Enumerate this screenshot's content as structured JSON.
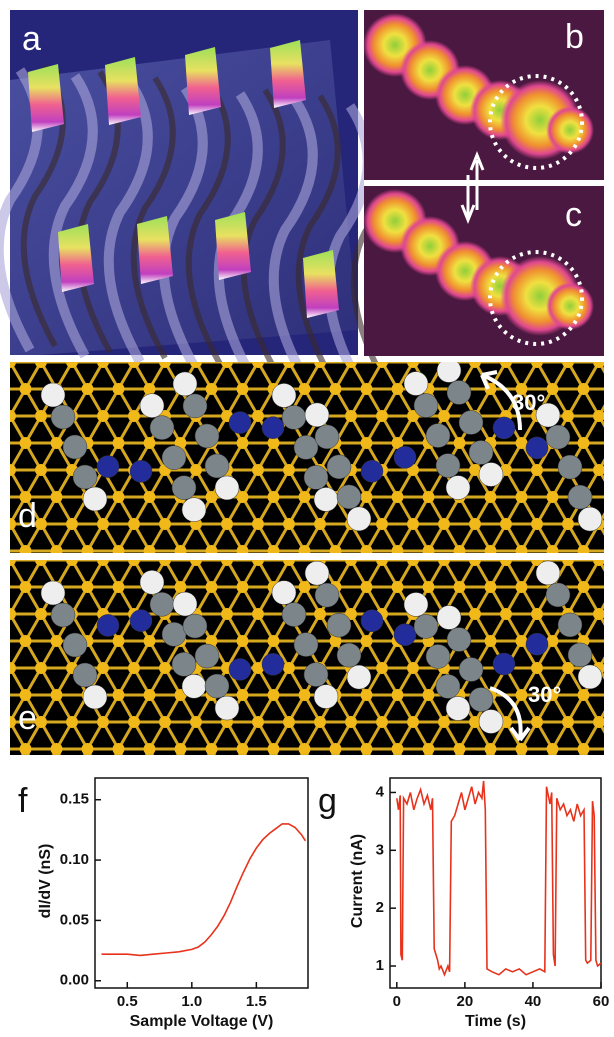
{
  "panels": {
    "a": "a",
    "b": "b",
    "c": "c",
    "d": "d",
    "e": "e",
    "d_angle": "30°",
    "e_angle": "30°"
  },
  "chart_data": [
    {
      "type": "line",
      "label": "f",
      "x_label": "Sample Voltage (V)",
      "y_label": "dI/dV (nS)",
      "color": "#e8331c",
      "x": [
        0.3,
        0.4,
        0.5,
        0.6,
        0.7,
        0.8,
        0.9,
        1.0,
        1.05,
        1.1,
        1.15,
        1.2,
        1.25,
        1.3,
        1.35,
        1.4,
        1.45,
        1.5,
        1.55,
        1.6,
        1.65,
        1.7,
        1.75,
        1.8,
        1.85,
        1.88
      ],
      "values": [
        0.022,
        0.022,
        0.022,
        0.021,
        0.022,
        0.023,
        0.024,
        0.026,
        0.028,
        0.032,
        0.038,
        0.045,
        0.054,
        0.065,
        0.078,
        0.09,
        0.101,
        0.11,
        0.117,
        0.122,
        0.126,
        0.13,
        0.13,
        0.127,
        0.121,
        0.116
      ],
      "xlim": [
        0.25,
        1.9
      ],
      "ylim": [
        -0.006,
        0.168
      ],
      "xticks": [
        0.5,
        {
          "value": 1,
          "label": "1.0"
        },
        1.5
      ],
      "yticks": [
        {
          "value": 0,
          "label": "0.00"
        },
        {
          "value": 0.05,
          "label": "0.05"
        },
        {
          "value": 0.1,
          "label": "0.10"
        },
        0.15
      ]
    },
    {
      "type": "line",
      "label": "g",
      "x_label": "Time (s)",
      "y_label": "Current (nA)",
      "color": "#e8331c",
      "x": [
        0,
        0.5,
        1,
        1.2,
        1.6,
        2,
        3,
        4,
        5,
        6,
        7,
        8,
        9,
        10,
        10.5,
        11,
        12,
        12.5,
        13,
        14,
        15,
        15.5,
        16,
        17,
        18,
        19,
        20,
        21,
        22,
        23,
        24,
        25,
        25.5,
        26,
        26.5,
        28,
        30,
        32,
        34,
        36,
        38,
        40,
        42,
        43.5,
        44,
        45,
        45.5,
        46,
        46.5,
        47,
        48,
        49,
        50,
        51,
        52,
        53,
        54,
        55,
        55.5,
        56,
        57,
        57.5,
        58,
        58.5,
        59,
        60
      ],
      "values": [
        3.9,
        3.7,
        3.95,
        1.2,
        1.1,
        3.9,
        3.8,
        4.0,
        3.7,
        3.9,
        4.05,
        3.8,
        3.95,
        3.7,
        3.9,
        1.3,
        1.1,
        0.95,
        1.0,
        0.85,
        1.0,
        0.9,
        3.5,
        3.6,
        3.8,
        4.0,
        3.7,
        3.9,
        4.1,
        3.8,
        4.0,
        3.9,
        4.2,
        3.7,
        0.95,
        0.9,
        0.85,
        0.95,
        0.9,
        0.95,
        0.85,
        0.9,
        0.95,
        0.9,
        4.1,
        3.8,
        4.0,
        1.2,
        1.0,
        3.9,
        3.7,
        3.8,
        3.6,
        3.7,
        3.5,
        3.8,
        3.6,
        3.7,
        1.1,
        1.05,
        1.1,
        3.85,
        3.6,
        1.1,
        1.0,
        1.05
      ],
      "xlim": [
        -2,
        60
      ],
      "ylim": [
        0.62,
        4.25
      ],
      "xticks": [
        0,
        20,
        40,
        60
      ],
      "yticks": [
        1,
        2,
        3,
        4
      ]
    }
  ]
}
